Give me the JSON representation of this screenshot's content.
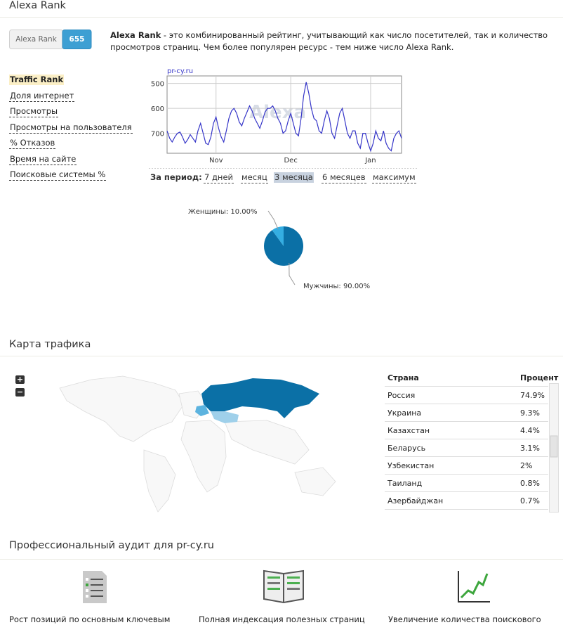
{
  "alexa": {
    "title": "Alexa Rank",
    "badge_label": "Alexa Rank",
    "badge_value": "655",
    "description_bold": "Alexa Rank",
    "description": " - это комбинированный рейтинг, учитывающий как число посетителей, так и количество просмотров страниц. Чем более популярен ресурс - тем ниже число Alexa Rank.",
    "menu": [
      "Traffic Rank",
      "Доля интернет",
      "Просмотры",
      "Просмотры на пользователя",
      "% Отказов",
      "Время на сайте",
      "Поисковые системы %"
    ],
    "selected_menu": 0,
    "period_label": "За период:",
    "periods": [
      "7 дней",
      "месяц",
      "3 месяца",
      "6 месяцев",
      "максимум"
    ],
    "selected_period": 2
  },
  "chart_data": [
    {
      "type": "line",
      "source": "pr-cy.ru",
      "watermark": "Alexa",
      "color": "#3535c8",
      "categories": [
        null,
        null,
        null,
        null,
        null,
        null,
        null,
        null,
        null,
        null,
        null,
        null,
        null,
        null,
        null,
        null,
        null,
        null,
        null,
        "Nov",
        null,
        null,
        null,
        null,
        null,
        null,
        null,
        null,
        null,
        null,
        null,
        null,
        null,
        null,
        null,
        null,
        null,
        null,
        null,
        null,
        null,
        null,
        null,
        null,
        null,
        null,
        null,
        null,
        "Dec",
        null,
        null,
        null,
        null,
        null,
        null,
        null,
        null,
        null,
        null,
        null,
        null,
        null,
        null,
        null,
        null,
        null,
        null,
        null,
        null,
        null,
        null,
        null,
        null,
        null,
        null,
        null,
        null,
        null,
        null,
        "Jan",
        null,
        null,
        null,
        null,
        null,
        null,
        null,
        null,
        null,
        null,
        null,
        null
      ],
      "values": [
        690,
        720,
        735,
        715,
        700,
        695,
        715,
        740,
        725,
        705,
        720,
        735,
        690,
        660,
        700,
        740,
        745,
        715,
        660,
        635,
        680,
        715,
        735,
        690,
        640,
        610,
        600,
        620,
        655,
        670,
        640,
        615,
        590,
        610,
        640,
        660,
        680,
        650,
        615,
        600,
        600,
        590,
        610,
        640,
        660,
        700,
        690,
        650,
        620,
        660,
        700,
        710,
        640,
        550,
        495,
        540,
        600,
        640,
        650,
        690,
        700,
        650,
        610,
        640,
        700,
        720,
        670,
        620,
        600,
        650,
        700,
        720,
        690,
        690,
        740,
        760,
        700,
        700,
        740,
        770,
        740,
        690,
        720,
        730,
        690,
        740,
        760,
        770,
        720,
        700,
        690,
        720
      ],
      "ylim": [
        780,
        470
      ],
      "yticks": [
        500,
        600,
        700
      ],
      "grid": true
    },
    {
      "type": "pie",
      "values": [
        10,
        90
      ],
      "value_labels": [
        "Женщины: 10.00%",
        "Мужчины: 90.00%"
      ],
      "colors": [
        "#35aee2",
        "#0b70a6"
      ]
    }
  ],
  "traffic": {
    "title": "Карта трафика",
    "zoom_in": "+",
    "zoom_out": "−",
    "table": {
      "header": [
        "Страна",
        "Процент"
      ],
      "rows": [
        [
          "Россия",
          "74.9%"
        ],
        [
          "Украина",
          "9.3%"
        ],
        [
          "Казахстан",
          "4.4%"
        ],
        [
          "Беларусь",
          "3.1%"
        ],
        [
          "Узбекистан",
          "2%"
        ],
        [
          "Таиланд",
          "0.8%"
        ],
        [
          "Азербайджан",
          "0.7%"
        ]
      ]
    }
  },
  "audit": {
    "title": "Профессиональный аудит для pr-cy.ru",
    "items": [
      "Рост позиций по основным ключевым",
      "Полная индексация полезных страниц",
      "Увеличение количества поискового"
    ]
  }
}
